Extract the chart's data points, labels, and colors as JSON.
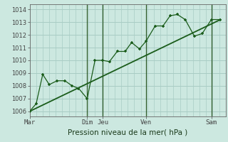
{
  "title": "Pression niveau de la mer( hPa )",
  "background_color": "#cce8e0",
  "grid_color": "#a8ccc4",
  "line_color": "#1a5c1a",
  "yticks": [
    1006,
    1007,
    1008,
    1009,
    1010,
    1011,
    1012,
    1013,
    1014
  ],
  "ylim": [
    1005.6,
    1014.4
  ],
  "xlim": [
    0,
    300
  ],
  "pressure_x": [
    0,
    10,
    20,
    30,
    42,
    54,
    65,
    75,
    88,
    100,
    112,
    122,
    134,
    146,
    156,
    168,
    178,
    192,
    204,
    215,
    226,
    238,
    252,
    264,
    278,
    292
  ],
  "pressure_y": [
    1006.0,
    1006.6,
    1008.9,
    1008.1,
    1008.4,
    1008.4,
    1008.0,
    1007.8,
    1007.0,
    1010.0,
    1010.0,
    1009.9,
    1010.7,
    1010.7,
    1011.4,
    1010.9,
    1011.5,
    1012.7,
    1012.7,
    1013.5,
    1013.6,
    1013.2,
    1011.9,
    1012.1,
    1013.2,
    1013.2
  ],
  "trend_x": [
    0,
    292
  ],
  "trend_y": [
    1006.0,
    1013.2
  ],
  "vline_x": [
    88,
    112,
    178,
    278
  ],
  "day_labels": [
    "Mar",
    "Dim",
    "Jeu",
    "Ven",
    "Sam"
  ],
  "day_x": [
    0,
    88,
    112,
    178,
    278
  ],
  "xlabel_fontsize": 7.5,
  "ytick_fontsize": 6.0,
  "xtick_fontsize": 6.5
}
